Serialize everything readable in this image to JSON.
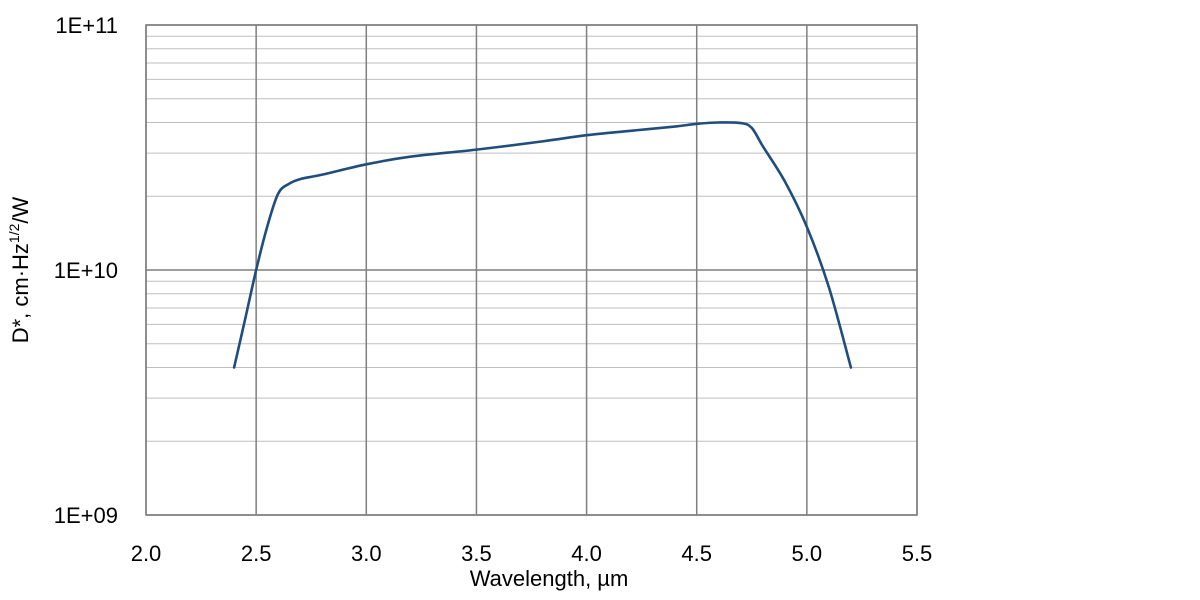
{
  "chart_data": {
    "type": "line",
    "title": "",
    "xlabel": "Wavelength, µm",
    "ylabel": {
      "main": "D*, cm·Hz",
      "superscript": "1/2",
      "suffix": "/W"
    },
    "xlim": [
      2.0,
      5.5
    ],
    "ylim": [
      1000000000,
      100000000000
    ],
    "y_scale": "log",
    "grid": true,
    "x_ticks": [
      2.0,
      2.5,
      3.0,
      3.5,
      4.0,
      4.5,
      5.0,
      5.5
    ],
    "x_tick_labels": [
      "2.0",
      "2.5",
      "3.0",
      "3.5",
      "4.0",
      "4.5",
      "5.0",
      "5.5"
    ],
    "y_ticks": [
      1000000000,
      10000000000,
      100000000000
    ],
    "y_tick_labels": [
      "1E+09",
      "1E+10",
      "1E+11"
    ],
    "line_color": "#1f4e7d",
    "series": [
      {
        "x": [
          2.4,
          2.45,
          2.5,
          2.55,
          2.6,
          2.65,
          2.7,
          2.8,
          3.0,
          3.2,
          3.5,
          3.8,
          4.0,
          4.2,
          4.4,
          4.5,
          4.6,
          4.7,
          4.75,
          4.8,
          4.9,
          5.0,
          5.1,
          5.2
        ],
        "y": [
          4000000000,
          6300000000,
          10000000000,
          15000000000,
          20500000000,
          22500000000,
          23500000000,
          24500000000,
          27000000000,
          29000000000,
          31000000000,
          33500000000,
          35500000000,
          37000000000,
          38500000000,
          39500000000,
          40000000000,
          39800000000,
          38000000000,
          32000000000,
          23000000000,
          15000000000,
          8500000000,
          4000000000
        ]
      }
    ]
  }
}
